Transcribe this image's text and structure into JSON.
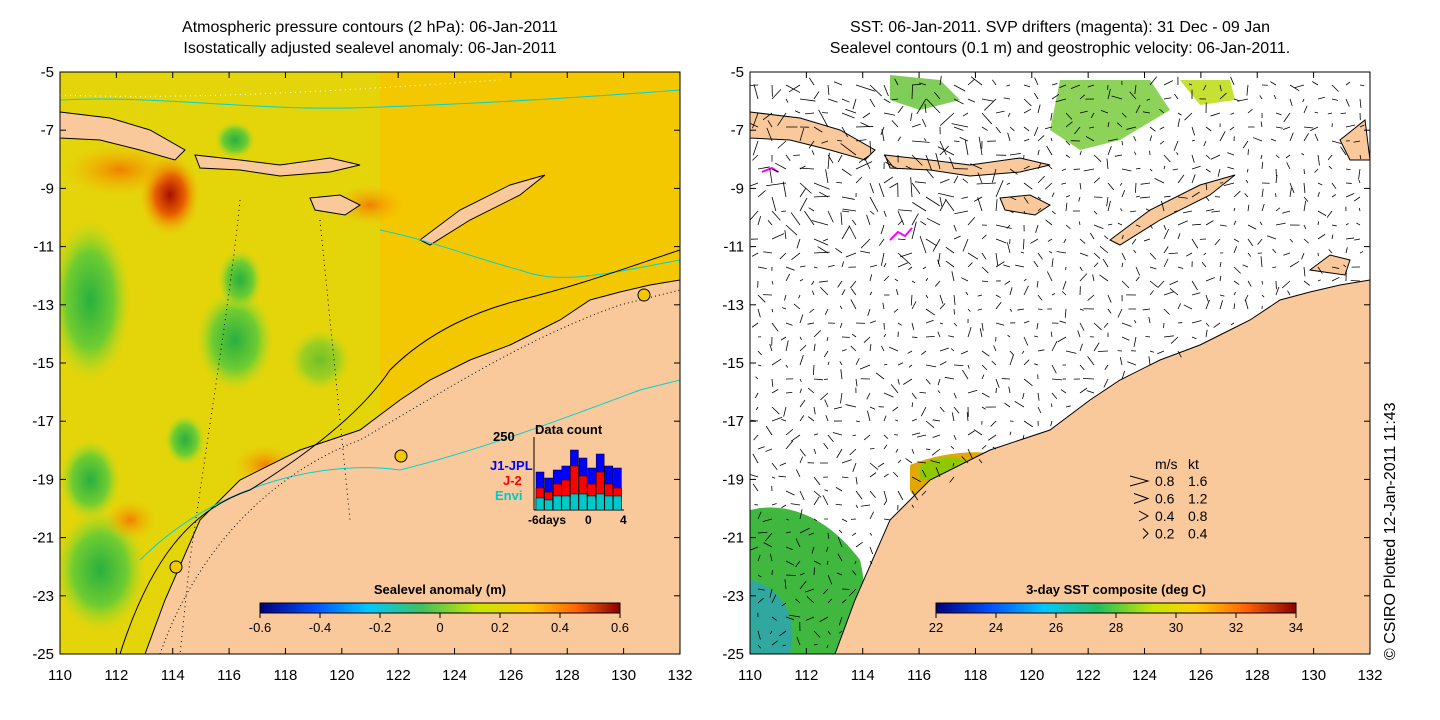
{
  "left_panel": {
    "title_line1": "Atmospheric pressure contours (2 hPa): 06-Jan-2011",
    "title_line2": "Isostatically adjusted sealevel anomaly: 06-Jan-2011",
    "y_ticks": [
      "-5",
      "-7",
      "-9",
      "-11",
      "-13",
      "-15",
      "-17",
      "-19",
      "-21",
      "-23",
      "-25"
    ],
    "x_ticks": [
      "110",
      "112",
      "114",
      "116",
      "118",
      "120",
      "122",
      "124",
      "126",
      "128",
      "130",
      "132"
    ],
    "colorbar_title": "Sealevel anomaly (m)",
    "colorbar_ticks": [
      "-0.6",
      "-0.4",
      "-0.2",
      "0",
      "0.2",
      "0.4",
      "0.6"
    ],
    "inset": {
      "title": "Data count",
      "y_max_label": "250",
      "x_labels": [
        "-6days",
        "0",
        "4"
      ],
      "legend": [
        {
          "label": "J1-JPL",
          "color": "#0000ff"
        },
        {
          "label": "J-2",
          "color": "#ff0000"
        },
        {
          "label": "Envi",
          "color": "#00c8c8"
        }
      ]
    }
  },
  "right_panel": {
    "title_line1": "SST: 06-Jan-2011. SVP drifters (magenta): 31 Dec - 09 Jan",
    "title_line2": "Sealevel contours (0.1 m) and geostrophic velocity: 06-Jan-2011.",
    "y_ticks": [
      "-5",
      "-7",
      "-9",
      "-11",
      "-13",
      "-15",
      "-17",
      "-19",
      "-21",
      "-23",
      "-25"
    ],
    "x_ticks": [
      "110",
      "112",
      "114",
      "116",
      "118",
      "120",
      "122",
      "124",
      "126",
      "128",
      "130",
      "132"
    ],
    "colorbar_title": "3-day SST composite (deg C)",
    "colorbar_ticks": [
      "22",
      "24",
      "26",
      "28",
      "30",
      "32",
      "34"
    ],
    "speed_legend": {
      "header_ms": "m/s",
      "header_kt": "kt",
      "rows": [
        {
          "ms": "0.8",
          "kt": "1.6"
        },
        {
          "ms": "0.6",
          "kt": "1.2"
        },
        {
          "ms": "0.4",
          "kt": "0.8"
        },
        {
          "ms": "0.2",
          "kt": "0.4"
        }
      ]
    }
  },
  "credit": "© CSIRO Plotted 12-Jan-2011 11:43",
  "colors": {
    "land": "#f9c99b",
    "ocean_anomaly": "#f6c400",
    "coast_line": "#00d2d2"
  }
}
